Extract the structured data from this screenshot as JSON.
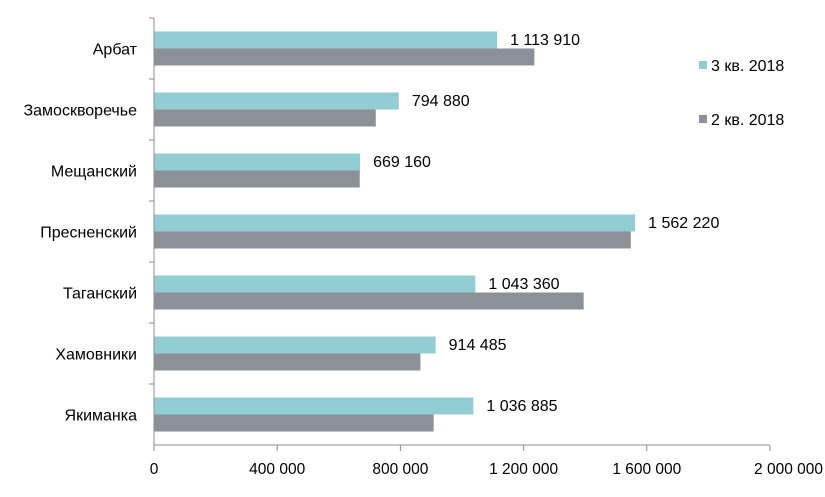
{
  "chart_data": {
    "type": "bar",
    "orientation": "horizontal",
    "categories": [
      "Арбат",
      "Замоскворечье",
      "Мещанский",
      "Пресненский",
      "Таганский",
      "Хамовники",
      "Якиманка"
    ],
    "series": [
      {
        "name": "3 кв. 2018",
        "color": "#92CDD3",
        "values": [
          1113910,
          794880,
          669160,
          1562220,
          1043360,
          914485,
          1036885
        ],
        "labels": [
          "1 113 910",
          "794 880",
          "669 160",
          "1 562 220",
          "1 043 360",
          "914 485",
          "1 036 885"
        ]
      },
      {
        "name": "2 кв. 2018",
        "color": "#8C9097",
        "values": [
          1235000,
          720000,
          668000,
          1548000,
          1395000,
          865000,
          908000
        ]
      }
    ],
    "xlim": [
      0,
      2000000
    ],
    "xticks": [
      0,
      400000,
      800000,
      1200000,
      1600000,
      2000000
    ],
    "xtick_labels": [
      "0",
      "400 000",
      "800 000",
      "1 200 000",
      "1 600 000",
      "2 000 000"
    ],
    "grid": false,
    "legend_position": "top-right",
    "title": "",
    "xlabel": "",
    "ylabel": ""
  }
}
